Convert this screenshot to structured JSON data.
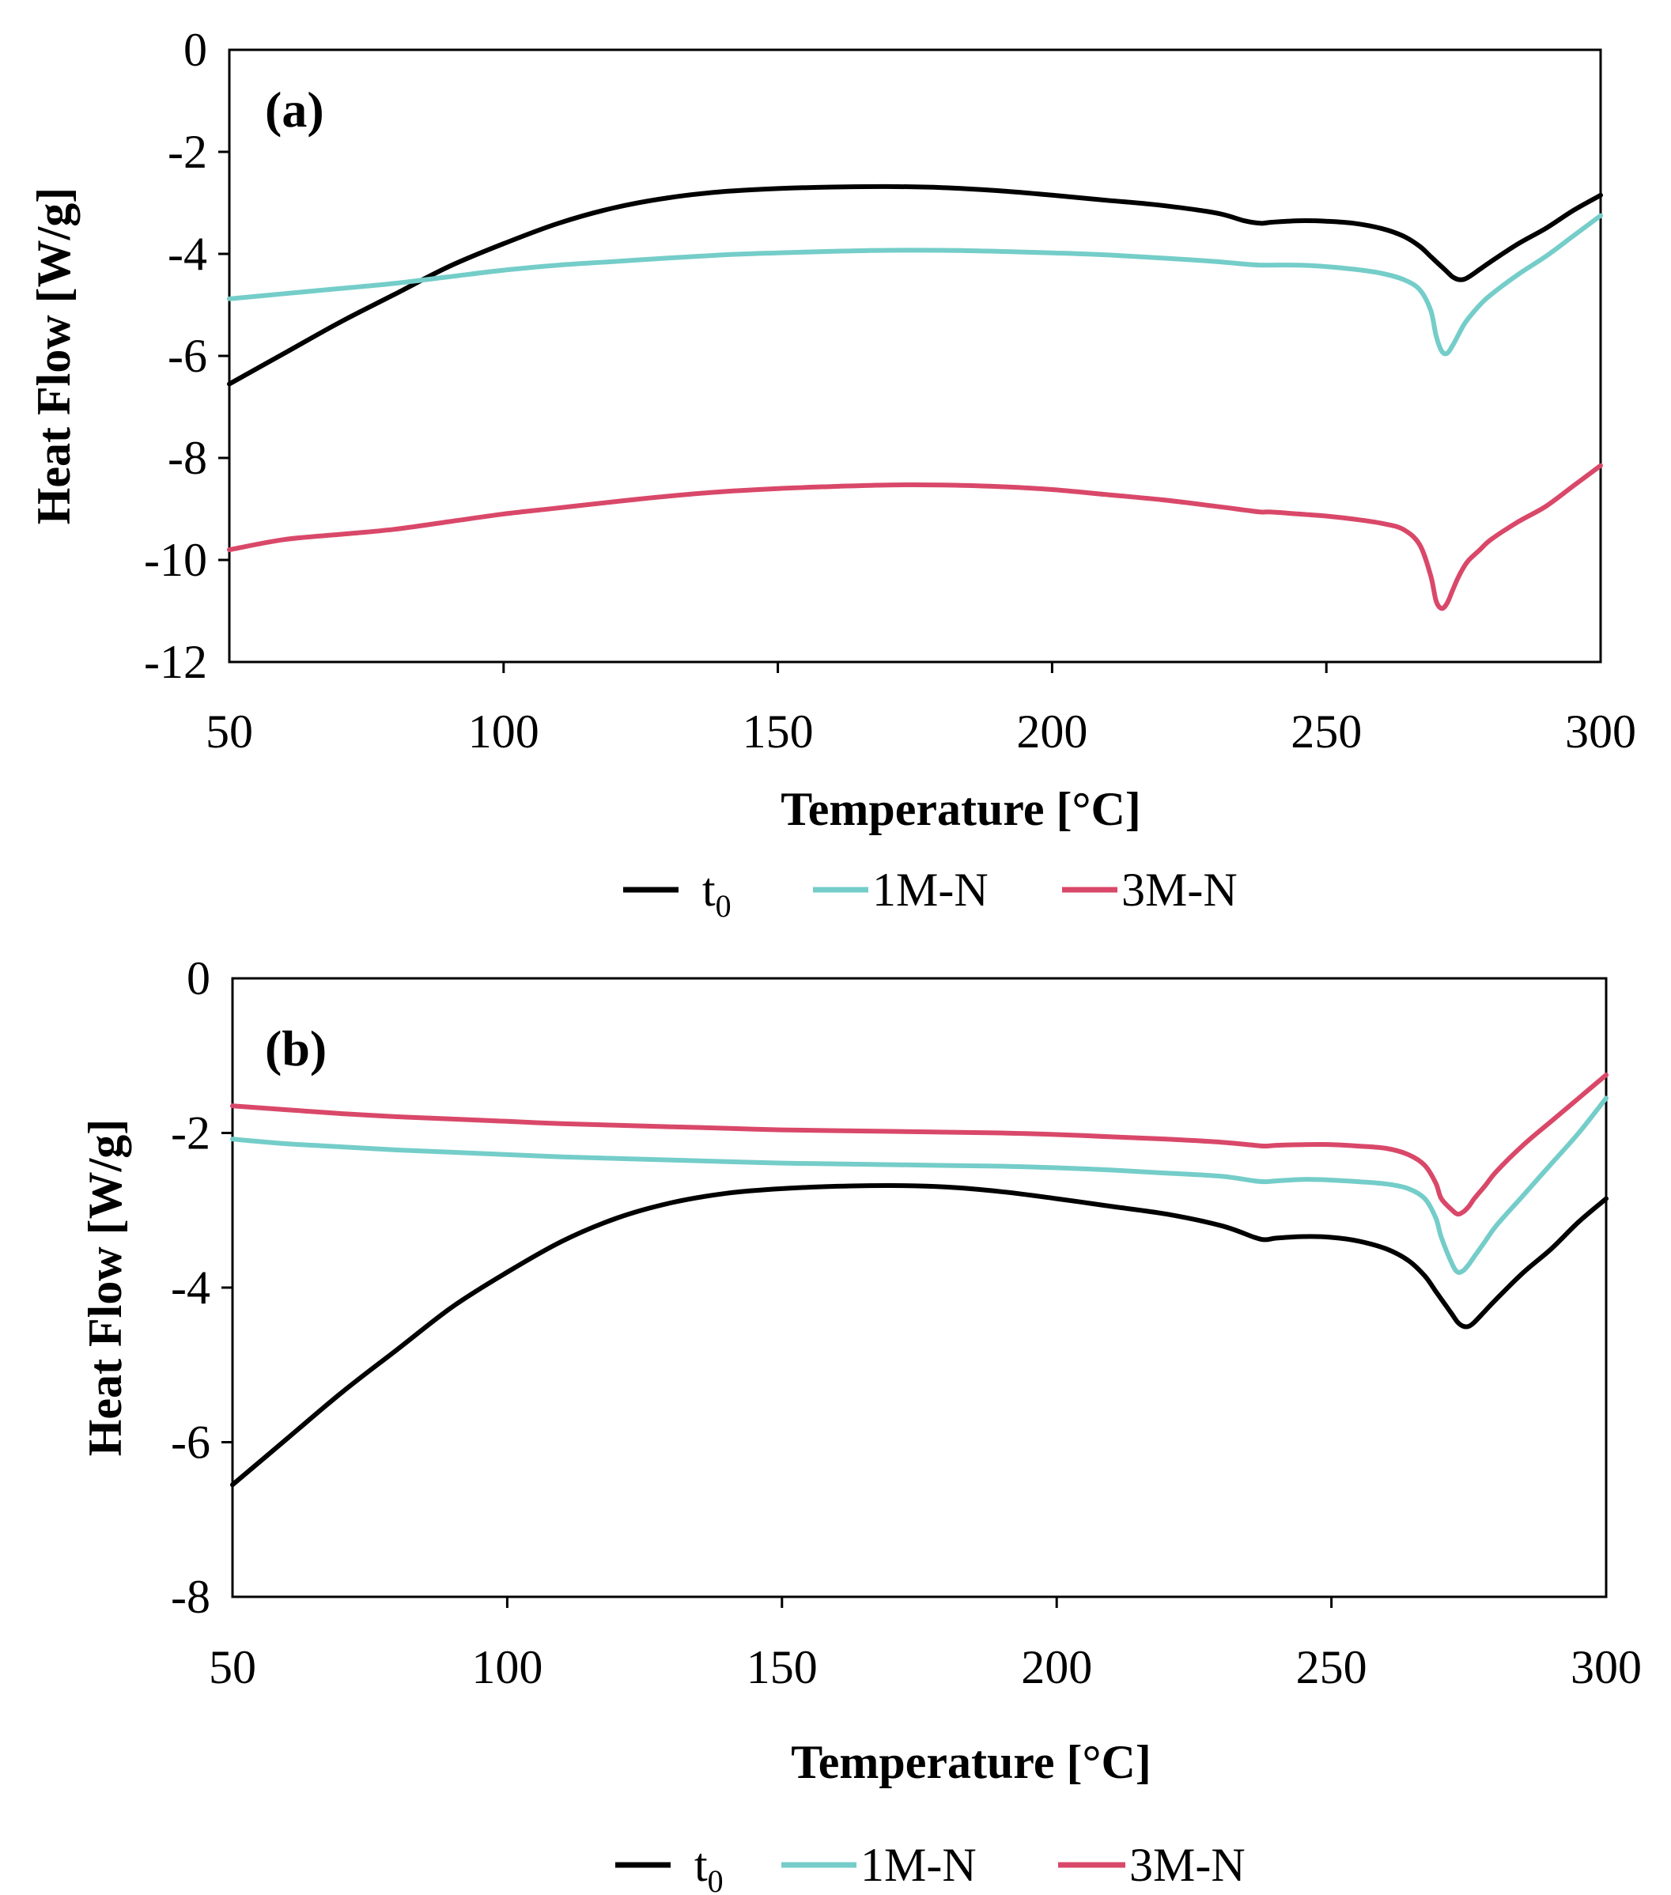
{
  "colors": {
    "t0": "#000000",
    "1M-N": "#74cdc9",
    "3M-N": "#d94869"
  },
  "chart_data": [
    {
      "type": "line",
      "panel_label": "(a)",
      "xlabel": "Temperature [°C]",
      "ylabel": "Heat Flow [W/g]",
      "xlim": [
        50,
        300
      ],
      "ylim": [
        -12,
        0
      ],
      "xticks": [
        "50",
        "100",
        "150",
        "200",
        "250",
        "300"
      ],
      "yticks": [
        "0",
        "-2",
        "-4",
        "-6",
        "-8",
        "-10",
        "-12"
      ],
      "legend": [
        "t0",
        "1M-N",
        "3M-N"
      ],
      "legend_position": "bottom",
      "x": [
        50,
        60,
        70,
        80,
        90,
        100,
        110,
        120,
        130,
        140,
        150,
        160,
        170,
        180,
        190,
        200,
        210,
        220,
        230,
        235,
        238,
        240,
        245,
        250,
        255,
        260,
        264,
        267,
        269,
        270,
        271,
        272,
        273,
        274,
        275,
        276,
        278,
        280,
        285,
        290,
        295,
        300
      ],
      "series": [
        {
          "name": "t0",
          "color": "#000000",
          "values": [
            -6.55,
            -5.95,
            -5.35,
            -4.8,
            -4.25,
            -3.8,
            -3.4,
            -3.1,
            -2.9,
            -2.78,
            -2.72,
            -2.69,
            -2.68,
            -2.7,
            -2.76,
            -2.85,
            -2.95,
            -3.05,
            -3.2,
            -3.35,
            -3.4,
            -3.38,
            -3.35,
            -3.36,
            -3.4,
            -3.5,
            -3.65,
            -3.85,
            -4.05,
            -4.15,
            -4.25,
            -4.35,
            -4.45,
            -4.5,
            -4.5,
            -4.45,
            -4.3,
            -4.15,
            -3.8,
            -3.5,
            -3.15,
            -2.85
          ]
        },
        {
          "name": "1M-N",
          "color": "#74cdc9",
          "values": [
            -4.88,
            -4.78,
            -4.68,
            -4.58,
            -4.45,
            -4.32,
            -4.22,
            -4.15,
            -4.08,
            -4.02,
            -3.98,
            -3.95,
            -3.93,
            -3.93,
            -3.95,
            -3.98,
            -4.02,
            -4.08,
            -4.15,
            -4.2,
            -4.22,
            -4.22,
            -4.22,
            -4.25,
            -4.3,
            -4.38,
            -4.5,
            -4.7,
            -5.1,
            -5.6,
            -5.9,
            -5.95,
            -5.8,
            -5.6,
            -5.4,
            -5.25,
            -5.0,
            -4.8,
            -4.4,
            -4.05,
            -3.65,
            -3.25
          ]
        },
        {
          "name": "3M-N",
          "color": "#d94869",
          "values": [
            -9.8,
            -9.6,
            -9.5,
            -9.4,
            -9.25,
            -9.1,
            -8.98,
            -8.86,
            -8.75,
            -8.66,
            -8.6,
            -8.56,
            -8.53,
            -8.53,
            -8.56,
            -8.62,
            -8.72,
            -8.82,
            -8.95,
            -9.02,
            -9.06,
            -9.06,
            -9.1,
            -9.14,
            -9.2,
            -9.28,
            -9.4,
            -9.7,
            -10.3,
            -10.8,
            -10.95,
            -10.85,
            -10.6,
            -10.35,
            -10.15,
            -10.0,
            -9.8,
            -9.6,
            -9.25,
            -8.95,
            -8.55,
            -8.15
          ]
        }
      ]
    },
    {
      "type": "line",
      "panel_label": "(b)",
      "xlabel": "Temperature [°C]",
      "ylabel": "Heat Flow [W/g]",
      "xlim": [
        50,
        300
      ],
      "ylim": [
        -8,
        0
      ],
      "xticks": [
        "50",
        "100",
        "150",
        "200",
        "250",
        "300"
      ],
      "yticks": [
        "0",
        "-2",
        "-4",
        "-6",
        "-8"
      ],
      "legend": [
        "t0",
        "1M-N",
        "3M-N"
      ],
      "legend_position": "bottom",
      "x": [
        50,
        60,
        70,
        80,
        90,
        100,
        110,
        120,
        130,
        140,
        150,
        160,
        170,
        180,
        190,
        200,
        210,
        220,
        230,
        236,
        238,
        240,
        245,
        250,
        255,
        260,
        264,
        267,
        269,
        270,
        272,
        273,
        274,
        275,
        276,
        278,
        280,
        285,
        290,
        295,
        300
      ],
      "series": [
        {
          "name": "t0",
          "color": "#000000",
          "values": [
            -6.55,
            -5.95,
            -5.35,
            -4.8,
            -4.25,
            -3.8,
            -3.4,
            -3.1,
            -2.9,
            -2.78,
            -2.72,
            -2.69,
            -2.68,
            -2.7,
            -2.76,
            -2.85,
            -2.95,
            -3.05,
            -3.2,
            -3.35,
            -3.38,
            -3.36,
            -3.34,
            -3.35,
            -3.4,
            -3.5,
            -3.65,
            -3.85,
            -4.05,
            -4.15,
            -4.35,
            -4.45,
            -4.5,
            -4.5,
            -4.45,
            -4.3,
            -4.15,
            -3.8,
            -3.5,
            -3.15,
            -2.85
          ]
        },
        {
          "name": "1M-N",
          "color": "#74cdc9",
          "values": [
            -2.08,
            -2.14,
            -2.18,
            -2.22,
            -2.25,
            -2.28,
            -2.31,
            -2.33,
            -2.35,
            -2.37,
            -2.39,
            -2.4,
            -2.41,
            -2.42,
            -2.43,
            -2.45,
            -2.48,
            -2.52,
            -2.56,
            -2.62,
            -2.63,
            -2.62,
            -2.6,
            -2.61,
            -2.63,
            -2.66,
            -2.72,
            -2.85,
            -3.1,
            -3.35,
            -3.7,
            -3.8,
            -3.78,
            -3.7,
            -3.6,
            -3.4,
            -3.2,
            -2.8,
            -2.4,
            -2.0,
            -1.55
          ]
        },
        {
          "name": "3M-N",
          "color": "#d94869",
          "values": [
            -1.65,
            -1.7,
            -1.75,
            -1.79,
            -1.82,
            -1.85,
            -1.88,
            -1.9,
            -1.92,
            -1.94,
            -1.96,
            -1.97,
            -1.98,
            -1.99,
            -2.0,
            -2.02,
            -2.05,
            -2.08,
            -2.12,
            -2.16,
            -2.17,
            -2.16,
            -2.15,
            -2.15,
            -2.17,
            -2.2,
            -2.28,
            -2.42,
            -2.65,
            -2.85,
            -3.0,
            -3.05,
            -3.02,
            -2.95,
            -2.85,
            -2.68,
            -2.5,
            -2.15,
            -1.85,
            -1.55,
            -1.25
          ]
        }
      ]
    }
  ]
}
